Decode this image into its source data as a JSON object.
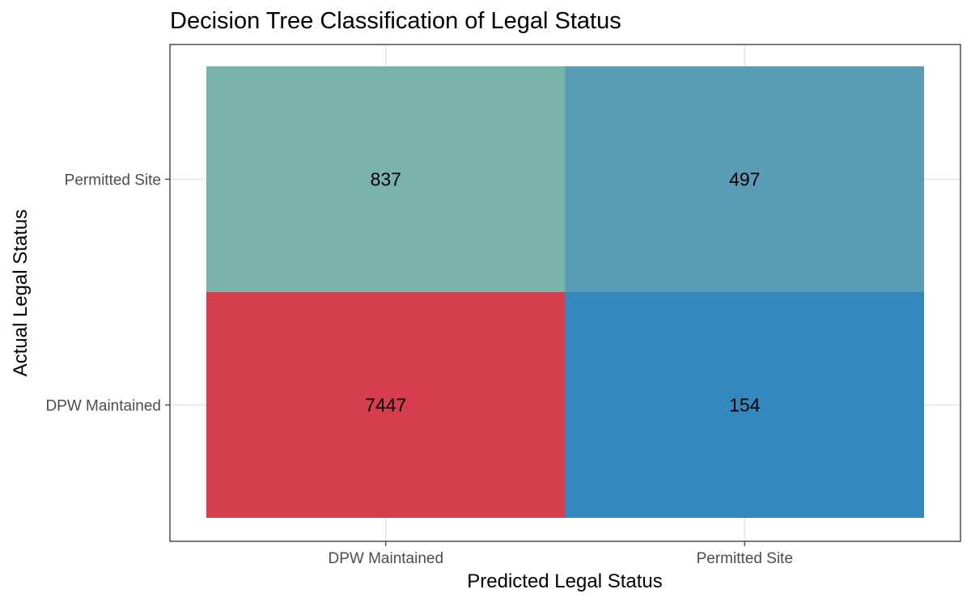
{
  "chart_data": {
    "type": "heatmap",
    "title": "Decision Tree Classification of Legal Status",
    "xlabel": "Predicted Legal Status",
    "ylabel": "Actual Legal Status",
    "x_categories": [
      "DPW Maintained",
      "Permitted Site"
    ],
    "y_categories": [
      "DPW Maintained",
      "Permitted Site"
    ],
    "cells": [
      {
        "actual": "DPW Maintained",
        "predicted": "DPW Maintained",
        "value": 7447,
        "color": "#d63e4f"
      },
      {
        "actual": "DPW Maintained",
        "predicted": "Permitted Site",
        "value": 154,
        "color": "#3388bd"
      },
      {
        "actual": "Permitted Site",
        "predicted": "DPW Maintained",
        "value": 837,
        "color": "#7ab3aa"
      },
      {
        "actual": "Permitted Site",
        "predicted": "Permitted Site",
        "value": 497,
        "color": "#5b9cb5"
      }
    ],
    "grid": true,
    "legend": "none"
  }
}
